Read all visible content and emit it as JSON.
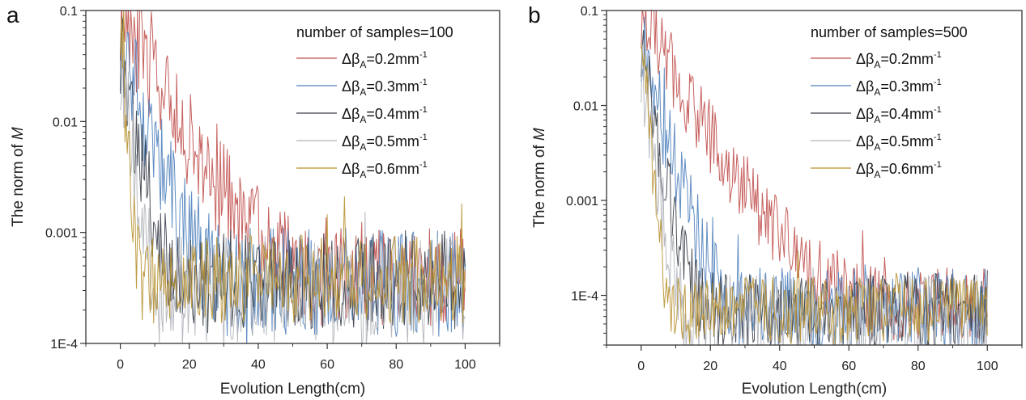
{
  "chart_data": [
    {
      "type": "line",
      "panel_label": "a",
      "title": "",
      "xlabel": "Evolution Length(cm)",
      "ylabel_prefix": "The norm of ",
      "ylabel_italic": "M",
      "yscale": "log",
      "xlim": [
        -10,
        110
      ],
      "ylim": [
        0.0001,
        0.1
      ],
      "xticks": [
        0,
        20,
        40,
        60,
        80,
        100
      ],
      "xtick_labels": [
        "0",
        "20",
        "40",
        "60",
        "80",
        "100"
      ],
      "yticks": [
        0.1,
        0.01,
        0.001,
        0.0001
      ],
      "ytick_labels": [
        "0.1",
        "0.01",
        "0.001",
        "1E-4"
      ],
      "grid": false,
      "legend_title": "number of samples=100",
      "legend_position": "top-right",
      "series": [
        {
          "name": "Δβ_A=0.2mm^-1",
          "label_main": "Δβ",
          "label_sub": "A",
          "label_val": "=0.2mm",
          "label_sup": "-1",
          "color": "#c0504d",
          "start": 0.1,
          "plateau_x": 58,
          "floor": 0.0004,
          "spread": 0.45
        },
        {
          "name": "Δβ_A=0.3mm^-1",
          "label_main": "Δβ",
          "label_sub": "A",
          "label_val": "=0.3mm",
          "label_sup": "-1",
          "color": "#4f81bd",
          "start": 0.06,
          "plateau_x": 32,
          "floor": 0.00035,
          "spread": 0.5
        },
        {
          "name": "Δβ_A=0.4mm^-1",
          "label_main": "Δβ",
          "label_sub": "A",
          "label_val": "=0.4mm",
          "label_sup": "-1",
          "color": "#3a3f4a",
          "start": 0.05,
          "plateau_x": 18,
          "floor": 0.00035,
          "spread": 0.45
        },
        {
          "name": "Δβ_A=0.5mm^-1",
          "label_main": "Δβ",
          "label_sub": "A",
          "label_val": "=0.5mm",
          "label_sup": "-1",
          "color": "#b0b4ba",
          "start": 0.04,
          "plateau_x": 12,
          "floor": 0.0003,
          "spread": 0.5
        },
        {
          "name": "Δβ_A=0.6mm^-1",
          "label_main": "Δβ",
          "label_sub": "A",
          "label_val": "=0.6mm",
          "label_sup": "-1",
          "color": "#b8912f",
          "start": 0.1,
          "plateau_x": 6,
          "floor": 0.00038,
          "spread": 0.4
        }
      ],
      "x_range_data": [
        0,
        100
      ]
    },
    {
      "type": "line",
      "panel_label": "b",
      "title": "",
      "xlabel": "Evolution Length(cm)",
      "ylabel_prefix": "The norm of ",
      "ylabel_italic": "M",
      "yscale": "log",
      "xlim": [
        -10,
        110
      ],
      "ylim": [
        3e-05,
        0.1
      ],
      "xticks": [
        0,
        20,
        40,
        60,
        80,
        100
      ],
      "xtick_labels": [
        "0",
        "20",
        "40",
        "60",
        "80",
        "100"
      ],
      "yticks": [
        0.1,
        0.01,
        0.001,
        0.0001
      ],
      "ytick_labels": [
        "0.1",
        "0.01",
        "0.001",
        "1E-4"
      ],
      "grid": false,
      "legend_title": "number of samples=500",
      "legend_position": "top-right",
      "series": [
        {
          "name": "Δβ_A=0.2mm^-1",
          "label_main": "Δβ",
          "label_sub": "A",
          "label_val": "=0.2mm",
          "label_sup": "-1",
          "color": "#c0504d",
          "start": 0.1,
          "plateau_x": 68,
          "floor": 8e-05,
          "spread": 0.4
        },
        {
          "name": "Δβ_A=0.3mm^-1",
          "label_main": "Δβ",
          "label_sub": "A",
          "label_val": "=0.3mm",
          "label_sup": "-1",
          "color": "#4f81bd",
          "start": 0.05,
          "plateau_x": 30,
          "floor": 7e-05,
          "spread": 0.45
        },
        {
          "name": "Δβ_A=0.4mm^-1",
          "label_main": "Δβ",
          "label_sub": "A",
          "label_val": "=0.4mm",
          "label_sup": "-1",
          "color": "#3a3f4a",
          "start": 0.05,
          "plateau_x": 20,
          "floor": 7e-05,
          "spread": 0.4
        },
        {
          "name": "Δβ_A=0.5mm^-1",
          "label_main": "Δβ",
          "label_sub": "A",
          "label_val": "=0.5mm",
          "label_sup": "-1",
          "color": "#b0b4ba",
          "start": 0.03,
          "plateau_x": 14,
          "floor": 6e-05,
          "spread": 0.45
        },
        {
          "name": "Δβ_A=0.6mm^-1",
          "label_main": "Δβ",
          "label_sub": "A",
          "label_val": "=0.6mm",
          "label_sup": "-1",
          "color": "#b8912f",
          "start": 0.1,
          "plateau_x": 9,
          "floor": 7e-05,
          "spread": 0.35
        }
      ],
      "x_range_data": [
        0,
        100
      ]
    }
  ]
}
